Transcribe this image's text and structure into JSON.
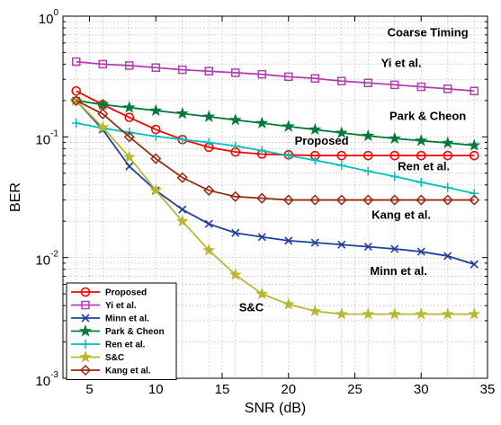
{
  "chart_data": {
    "type": "line",
    "title": "",
    "xlabel": "SNR (dB)",
    "ylabel": "BER",
    "xlim": [
      3,
      35
    ],
    "ylim": [
      0.001,
      1
    ],
    "yscale": "log",
    "grid": true,
    "legend_position": "bottom-left",
    "x_ticks": [
      5,
      10,
      15,
      20,
      25,
      30,
      35
    ],
    "x_tick_labels": [
      "5",
      "10",
      "15",
      "20",
      "25",
      "30",
      "35"
    ],
    "y_tick_labels": [
      {
        "base": "10",
        "exp": "0",
        "value": 1
      },
      {
        "base": "10",
        "exp": "-1",
        "value": 0.1
      },
      {
        "base": "10",
        "exp": "-2",
        "value": 0.01
      },
      {
        "base": "10",
        "exp": "-3",
        "value": 0.001
      }
    ],
    "x": [
      4,
      6,
      8,
      10,
      12,
      14,
      16,
      18,
      20,
      22,
      24,
      26,
      28,
      30,
      32,
      34
    ],
    "series": [
      {
        "name": "Proposed",
        "color": "#ff0000",
        "marker": "circle",
        "values": [
          0.24,
          0.185,
          0.145,
          0.115,
          0.095,
          0.082,
          0.075,
          0.072,
          0.071,
          0.07,
          0.07,
          0.07,
          0.07,
          0.07,
          0.07,
          0.07
        ]
      },
      {
        "name": "Yi et al.",
        "color": "#b040b0",
        "marker": "square",
        "values": [
          0.42,
          0.4,
          0.39,
          0.375,
          0.36,
          0.35,
          0.34,
          0.33,
          0.315,
          0.305,
          0.29,
          0.28,
          0.27,
          0.26,
          0.25,
          0.24
        ]
      },
      {
        "name": "Minn et al.",
        "color": "#1f3f9f",
        "marker": "x",
        "values": [
          0.2,
          0.115,
          0.057,
          0.036,
          0.025,
          0.019,
          0.016,
          0.0148,
          0.0138,
          0.0133,
          0.0128,
          0.0123,
          0.0118,
          0.0112,
          0.0103,
          0.0088
        ]
      },
      {
        "name": "Park & Cheon",
        "color": "#007a3a",
        "marker": "star",
        "values": [
          0.2,
          0.185,
          0.175,
          0.165,
          0.156,
          0.147,
          0.138,
          0.13,
          0.122,
          0.115,
          0.108,
          0.102,
          0.097,
          0.093,
          0.089,
          0.085
        ]
      },
      {
        "name": "Ren et al.",
        "color": "#00c0c0",
        "marker": "plus",
        "values": [
          0.13,
          0.118,
          0.109,
          0.101,
          0.095,
          0.09,
          0.084,
          0.077,
          0.07,
          0.064,
          0.058,
          0.052,
          0.047,
          0.042,
          0.038,
          0.034
        ]
      },
      {
        "name": "S&C",
        "color": "#b8b830",
        "marker": "star",
        "values": [
          0.2,
          0.12,
          0.068,
          0.036,
          0.02,
          0.0115,
          0.0072,
          0.005,
          0.0041,
          0.0036,
          0.0034,
          0.0034,
          0.0034,
          0.0034,
          0.0034,
          0.0034
        ]
      },
      {
        "name": "Kang et al.",
        "color": "#9a2a10",
        "marker": "diamond",
        "values": [
          0.2,
          0.155,
          0.1,
          0.066,
          0.046,
          0.036,
          0.032,
          0.031,
          0.03,
          0.03,
          0.03,
          0.03,
          0.03,
          0.03,
          0.03,
          0.03
        ]
      }
    ],
    "annotations": [
      {
        "text": "Coarse Timing",
        "x": 30.5,
        "y": 0.68
      },
      {
        "text": "Yi et al.",
        "x": 28.5,
        "y": 0.38
      },
      {
        "text": "Park & Cheon",
        "x": 30.5,
        "y": 0.138
      },
      {
        "text": "Proposed",
        "x": 22.5,
        "y": 0.086
      },
      {
        "text": "Ren et al.",
        "x": 30.2,
        "y": 0.053
      },
      {
        "text": "Kang et al.",
        "x": 28.5,
        "y": 0.021
      },
      {
        "text": "Minn et al.",
        "x": 28.3,
        "y": 0.0072
      },
      {
        "text": "S&C",
        "x": 17.2,
        "y": 0.0036
      }
    ]
  }
}
